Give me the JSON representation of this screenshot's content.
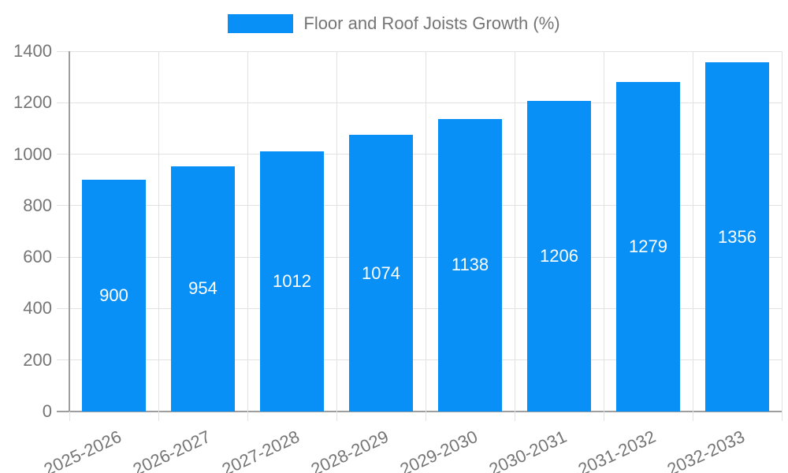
{
  "chart_data": {
    "type": "bar",
    "title": "Floor and Roof Joists Growth (%)",
    "legend_position": "top",
    "categories": [
      "2025-2026",
      "2026-2027",
      "2027-2028",
      "2028-2029",
      "2029-2030",
      "2030-2031",
      "2031-2032",
      "2032-2033"
    ],
    "values": [
      900,
      954,
      1012,
      1074,
      1138,
      1206,
      1279,
      1356
    ],
    "bar_value_labels": [
      "900",
      "954",
      "1012",
      "1074",
      "1138",
      "1206",
      "1279",
      "1356"
    ],
    "xlabel": "",
    "ylabel": "",
    "ylim": [
      0,
      1400
    ],
    "yticks": [
      0,
      200,
      400,
      600,
      800,
      1000,
      1200,
      1400
    ],
    "grid": true,
    "colors": {
      "bar": "#0990f6",
      "bar_label_text": "#ffffff",
      "axis_text": "#757575",
      "legend_text": "#757575",
      "gridline": "#e2e2e2",
      "axis_line": "#9e9e9e"
    }
  }
}
